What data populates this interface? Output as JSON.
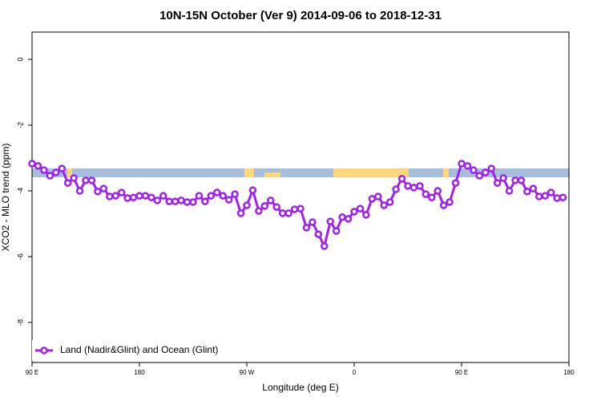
{
  "chart_data": {
    "type": "line",
    "title": "10N-15N October (Ver 9)   2014-09-06 to 2018-12-31",
    "x_label": "Longitude (deg E)",
    "y_label": "XCO2 - MLO trend (ppm)",
    "xlim": [
      90,
      540
    ],
    "ylim": [
      -9.22,
      0.83
    ],
    "xticks": [
      {
        "value": 90,
        "label": "90 E"
      },
      180,
      {
        "value": 270,
        "label": "90 W"
      },
      {
        "value": 360,
        "label": "0"
      },
      {
        "value": 450,
        "label": "90 E"
      },
      {
        "value": 540,
        "label": "180"
      }
    ],
    "yticks": [
      0,
      -2,
      -4,
      -6,
      -8
    ],
    "legend": "bottom-left",
    "x": [
      90,
      95,
      100,
      105,
      110,
      115,
      120,
      125,
      130,
      135,
      140,
      145,
      150,
      155,
      160,
      165,
      170,
      175,
      180,
      185,
      190,
      195,
      200,
      205,
      210,
      215,
      220,
      225,
      230,
      235,
      240,
      245,
      250,
      255,
      260,
      265,
      270,
      275,
      280,
      285,
      290,
      295,
      300,
      305,
      310,
      315,
      320,
      325,
      330,
      335,
      340,
      345,
      350,
      355,
      360,
      365,
      370,
      375,
      380,
      385,
      390,
      395,
      400,
      405,
      410,
      415,
      420,
      425,
      430,
      435,
      440,
      445,
      450,
      455,
      460,
      465,
      470,
      475,
      480,
      485,
      490,
      495,
      500,
      505,
      510,
      515,
      520,
      525,
      530,
      535
    ],
    "series": [
      {
        "name": "Land (Nadir&Glint) and Ocean (Glint)",
        "color": "#a020f0",
        "values": [
          -3.17,
          -3.24,
          -3.37,
          -3.54,
          -3.44,
          -3.32,
          -3.76,
          -3.61,
          -4.0,
          -3.68,
          -3.68,
          -4.02,
          -3.93,
          -4.17,
          -4.15,
          -4.05,
          -4.22,
          -4.2,
          -4.15,
          -4.15,
          -4.2,
          -4.29,
          -4.15,
          -4.32,
          -4.32,
          -4.29,
          -4.34,
          -4.34,
          -4.15,
          -4.32,
          -4.15,
          -4.05,
          -4.15,
          -4.27,
          -4.1,
          -4.68,
          -4.44,
          -3.98,
          -4.61,
          -4.46,
          -4.29,
          -4.49,
          -4.68,
          -4.68,
          -4.56,
          -4.54,
          -5.12,
          -4.95,
          -5.32,
          -5.68,
          -4.93,
          -5.22,
          -4.8,
          -4.85,
          -4.63,
          -4.54,
          -4.73,
          -4.24,
          -4.17,
          -4.44,
          -4.34,
          -3.95,
          -3.63,
          -3.85,
          -3.9,
          -3.85,
          -4.1,
          -4.2,
          -4.0,
          -4.44,
          -4.34,
          -3.76,
          -3.17,
          -3.24,
          -3.37,
          -3.54,
          -3.44,
          -3.32,
          -3.76,
          -3.61,
          -4.0,
          -3.68,
          -3.68,
          -4.02,
          -3.93,
          -4.17,
          -4.15,
          -4.05,
          -4.22,
          -4.2
        ]
      }
    ]
  }
}
